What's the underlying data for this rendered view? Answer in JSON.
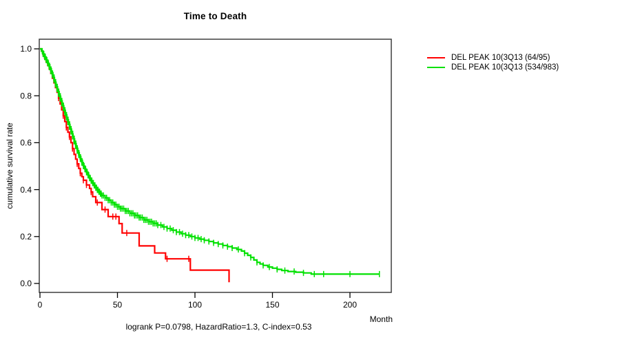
{
  "title": "Time to Death",
  "y_axis": {
    "label": "cumulative survival rate",
    "ticks": [
      "1.0",
      "0.8",
      "0.6",
      "0.4",
      "0.2",
      "0.0"
    ],
    "tick_values": [
      1.0,
      0.8,
      0.6,
      0.4,
      0.2,
      0.0
    ]
  },
  "x_axis": {
    "label": "Month",
    "ticks": [
      "0",
      "50",
      "100",
      "150",
      "200"
    ],
    "tick_values": [
      0,
      50,
      100,
      150,
      200
    ]
  },
  "legend": {
    "items": [
      {
        "label": "DEL PEAK 10(3Q13 (64/95)",
        "color": "#ff0000"
      },
      {
        "label": "DEL PEAK 10(3Q13 (534/983)",
        "color": "#00e100"
      }
    ]
  },
  "footer": "logrank P=0.0798, HazardRatio=1.3, C-index=0.53",
  "chart_data": {
    "type": "line",
    "subtype": "kaplan-meier-step",
    "title": "Time to Death",
    "xlabel": "Month",
    "ylabel": "cumulative survival rate",
    "xlim": [
      0,
      226
    ],
    "ylim": [
      -0.04,
      1.04
    ],
    "grid": false,
    "legend_position": "right-outside",
    "stats": {
      "logrank_p": 0.0798,
      "hazard_ratio": 1.3,
      "c_index": 0.53
    },
    "series": [
      {
        "name": "DEL PEAK 10(3Q13 (64/95)",
        "events_total": "64/95",
        "color": "#ff0000",
        "points": [
          [
            0,
            1.0
          ],
          [
            1,
            0.99
          ],
          [
            2,
            0.975
          ],
          [
            3,
            0.96
          ],
          [
            4,
            0.945
          ],
          [
            5,
            0.93
          ],
          [
            6,
            0.915
          ],
          [
            7,
            0.895
          ],
          [
            8,
            0.875
          ],
          [
            9,
            0.855
          ],
          [
            10,
            0.835
          ],
          [
            11,
            0.815
          ],
          [
            12,
            0.79
          ],
          [
            13,
            0.765
          ],
          [
            14,
            0.74
          ],
          [
            15,
            0.715
          ],
          [
            16,
            0.69
          ],
          [
            17,
            0.665
          ],
          [
            18,
            0.645
          ],
          [
            19,
            0.625
          ],
          [
            20,
            0.6
          ],
          [
            21,
            0.575
          ],
          [
            22,
            0.55
          ],
          [
            23,
            0.53
          ],
          [
            24,
            0.51
          ],
          [
            25,
            0.49
          ],
          [
            26,
            0.47
          ],
          [
            27,
            0.455
          ],
          [
            28,
            0.44
          ],
          [
            30,
            0.42
          ],
          [
            32,
            0.405
          ],
          [
            33,
            0.39
          ],
          [
            34,
            0.37
          ],
          [
            36,
            0.345
          ],
          [
            40,
            0.315
          ],
          [
            44,
            0.285
          ],
          [
            51,
            0.255
          ],
          [
            53,
            0.215
          ],
          [
            64,
            0.16
          ],
          [
            74,
            0.13
          ],
          [
            81,
            0.105
          ],
          [
            97,
            0.057
          ],
          [
            122,
            0.005
          ]
        ],
        "censor_months": [
          12,
          15,
          17,
          19,
          21,
          24,
          26,
          28,
          30,
          33,
          37,
          42,
          47,
          49,
          56,
          82,
          96
        ]
      },
      {
        "name": "DEL PEAK 10(3Q13 (534/983)",
        "events_total": "534/983",
        "color": "#00e100",
        "points": [
          [
            0,
            1.0
          ],
          [
            1,
            0.99
          ],
          [
            2,
            0.978
          ],
          [
            3,
            0.965
          ],
          [
            4,
            0.952
          ],
          [
            5,
            0.938
          ],
          [
            6,
            0.922
          ],
          [
            7,
            0.905
          ],
          [
            8,
            0.888
          ],
          [
            9,
            0.868
          ],
          [
            10,
            0.848
          ],
          [
            11,
            0.828
          ],
          [
            12,
            0.808
          ],
          [
            13,
            0.788
          ],
          [
            14,
            0.768
          ],
          [
            15,
            0.748
          ],
          [
            16,
            0.728
          ],
          [
            17,
            0.708
          ],
          [
            18,
            0.688
          ],
          [
            19,
            0.668
          ],
          [
            20,
            0.648
          ],
          [
            21,
            0.627
          ],
          [
            22,
            0.606
          ],
          [
            23,
            0.586
          ],
          [
            24,
            0.566
          ],
          [
            25,
            0.548
          ],
          [
            26,
            0.531
          ],
          [
            27,
            0.515
          ],
          [
            28,
            0.5
          ],
          [
            29,
            0.487
          ],
          [
            30,
            0.474
          ],
          [
            31,
            0.461
          ],
          [
            32,
            0.449
          ],
          [
            33,
            0.438
          ],
          [
            34,
            0.428
          ],
          [
            35,
            0.418
          ],
          [
            36,
            0.408
          ],
          [
            37,
            0.399
          ],
          [
            38,
            0.391
          ],
          [
            39,
            0.383
          ],
          [
            40,
            0.375
          ],
          [
            42,
            0.365
          ],
          [
            44,
            0.355
          ],
          [
            46,
            0.345
          ],
          [
            48,
            0.336
          ],
          [
            50,
            0.327
          ],
          [
            52,
            0.319
          ],
          [
            55,
            0.309
          ],
          [
            58,
            0.299
          ],
          [
            61,
            0.29
          ],
          [
            64,
            0.281
          ],
          [
            67,
            0.271
          ],
          [
            70,
            0.263
          ],
          [
            73,
            0.256
          ],
          [
            76,
            0.249
          ],
          [
            79,
            0.241
          ],
          [
            82,
            0.234
          ],
          [
            85,
            0.227
          ],
          [
            88,
            0.219
          ],
          [
            91,
            0.212
          ],
          [
            94,
            0.206
          ],
          [
            97,
            0.2
          ],
          [
            100,
            0.194
          ],
          [
            103,
            0.189
          ],
          [
            106,
            0.184
          ],
          [
            109,
            0.179
          ],
          [
            112,
            0.173
          ],
          [
            115,
            0.168
          ],
          [
            118,
            0.162
          ],
          [
            121,
            0.157
          ],
          [
            124,
            0.151
          ],
          [
            127,
            0.145
          ],
          [
            130,
            0.138
          ],
          [
            132,
            0.129
          ],
          [
            134,
            0.12
          ],
          [
            136,
            0.111
          ],
          [
            138,
            0.1
          ],
          [
            140,
            0.09
          ],
          [
            142,
            0.083
          ],
          [
            144,
            0.077
          ],
          [
            147,
            0.07
          ],
          [
            150,
            0.065
          ],
          [
            153,
            0.06
          ],
          [
            156,
            0.055
          ],
          [
            160,
            0.051
          ],
          [
            165,
            0.048
          ],
          [
            170,
            0.045
          ],
          [
            175,
            0.04
          ],
          [
            219,
            0.04
          ]
        ],
        "censor_months": [
          1.5,
          2,
          2.5,
          3,
          3.5,
          4,
          4.5,
          5,
          5.5,
          6,
          6.5,
          7,
          7.5,
          8,
          8.5,
          9,
          9.5,
          10,
          10.5,
          11,
          11.5,
          12,
          12.5,
          13,
          13.5,
          14,
          14.5,
          15,
          15.5,
          16,
          16.5,
          17,
          17.5,
          18,
          18.5,
          19,
          19.5,
          20,
          20.5,
          21,
          21.5,
          22,
          22.5,
          23,
          23.5,
          24,
          24.5,
          25,
          25.5,
          26,
          26.5,
          27,
          27.5,
          28,
          28.5,
          29,
          29.5,
          30,
          30.5,
          31,
          31.5,
          32,
          32.5,
          33,
          33.5,
          34,
          34.5,
          35,
          35.5,
          36,
          36.5,
          37,
          37.5,
          38,
          38.5,
          39,
          39.5,
          40,
          41,
          42,
          43,
          44,
          45,
          46,
          47,
          48,
          49,
          50,
          51,
          52,
          53,
          54,
          55,
          56,
          57,
          58,
          59,
          60,
          61,
          62,
          63,
          64,
          65,
          66,
          67,
          68,
          69,
          70,
          71,
          72,
          73,
          74,
          75,
          76,
          78,
          80,
          82,
          84,
          86,
          88,
          90,
          92,
          94,
          96,
          98,
          100,
          102,
          104,
          106,
          109,
          112,
          115,
          118,
          121,
          124,
          128,
          132,
          136,
          140,
          144,
          148,
          153,
          158,
          164,
          170,
          177,
          183,
          200,
          219
        ]
      }
    ]
  }
}
